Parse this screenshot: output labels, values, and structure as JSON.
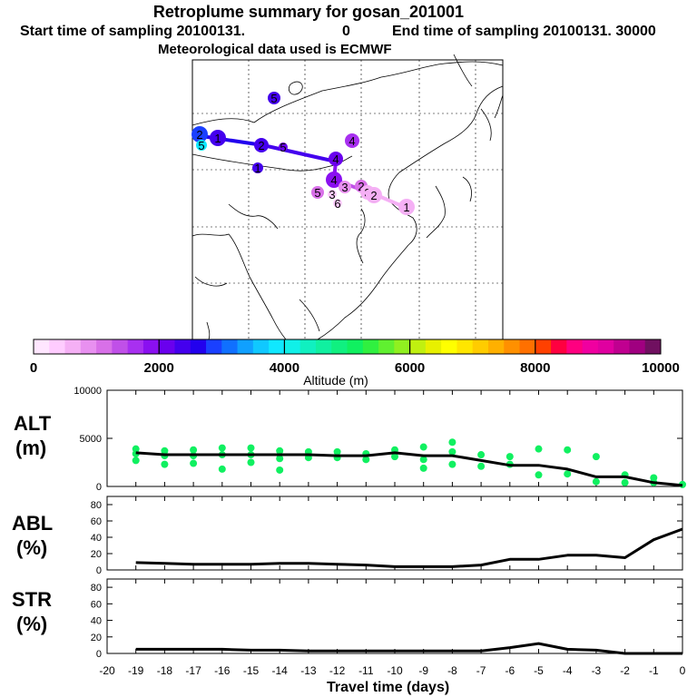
{
  "title": "Retroplume summary for gosan_201001",
  "subtitle": {
    "start_label": "Start time of sampling 20100131.",
    "start_value": "0",
    "end_label": "End time of sampling 20100131. 30000"
  },
  "met_note": "Meteorological data used is ECMWF",
  "colorbar": {
    "label": "Altitude (m)",
    "tick_labels": [
      "0",
      "2000",
      "4000",
      "6000",
      "8000",
      "10000"
    ],
    "colors": [
      "#ffe6ff",
      "#ffccff",
      "#f5b0f5",
      "#e890f0",
      "#d870e8",
      "#c050e8",
      "#a830f0",
      "#8a10f0",
      "#6a00ee",
      "#4400ee",
      "#2200ee",
      "#1a40ff",
      "#1070ff",
      "#10a0ff",
      "#10c8ff",
      "#10e8ff",
      "#10f0e8",
      "#10f0c0",
      "#10f0a0",
      "#10f080",
      "#10f060",
      "#30f040",
      "#60f030",
      "#90f020",
      "#c0f010",
      "#e8f000",
      "#ffff00",
      "#ffe600",
      "#ffcc00",
      "#ffb000",
      "#ff9000",
      "#ff7000",
      "#ff4000",
      "#ff0040",
      "#ff0080",
      "#f000a0",
      "#e000a0",
      "#c00090",
      "#a00080",
      "#701060"
    ]
  },
  "map_markers": [
    {
      "n": "2",
      "color": "#1a40ff"
    },
    {
      "n": "5",
      "color": "#10e8ff"
    },
    {
      "n": "1",
      "color": "#4400ee"
    },
    {
      "n": "5",
      "color": "#4400ee"
    },
    {
      "n": "2",
      "color": "#4400ee"
    },
    {
      "n": "5",
      "color": "#6a00ee"
    },
    {
      "n": "4",
      "color": "#a830f0"
    },
    {
      "n": "4",
      "color": "#6a00ee"
    },
    {
      "n": "1",
      "color": "#4400ee"
    },
    {
      "n": "4",
      "color": "#8a10f0"
    },
    {
      "n": "5",
      "color": "#d870e8"
    },
    {
      "n": "3",
      "color": "#e890f0"
    },
    {
      "n": "2",
      "color": "#d870e8"
    },
    {
      "n": "3",
      "color": "#f5b0f5"
    },
    {
      "n": "2",
      "color": "#f5b0f5"
    },
    {
      "n": "3",
      "color": "#ffccff"
    },
    {
      "n": "6",
      "color": "#ffccff"
    },
    {
      "n": "1",
      "color": "#f5b0f5"
    }
  ],
  "panels": [
    {
      "label_top": "ALT",
      "label_bottom": "(m)"
    },
    {
      "label_top": "ABL",
      "label_bottom": "(%)"
    },
    {
      "label_top": "STR",
      "label_bottom": "(%)"
    }
  ],
  "x_axis_label": "Travel time (days)",
  "chart_data": [
    {
      "type": "line",
      "name": "ALT",
      "ylabel": "ALT (m)",
      "xlabel": "Travel time (days)",
      "xlim": [
        -20,
        0
      ],
      "ylim": [
        0,
        10000
      ],
      "y_ticks": [
        0,
        5000,
        10000
      ],
      "x_ticks": [
        -20,
        -19,
        -18,
        -17,
        -16,
        -15,
        -14,
        -13,
        -12,
        -11,
        -10,
        -9,
        -8,
        -7,
        -6,
        -5,
        -4,
        -3,
        -2,
        -1,
        0
      ],
      "x": [
        -19,
        -18,
        -17,
        -16,
        -15,
        -14,
        -13,
        -12,
        -11,
        -10,
        -9,
        -8,
        -7,
        -6,
        -5,
        -4,
        -3,
        -2,
        -1,
        0
      ],
      "values": [
        3500,
        3300,
        3300,
        3300,
        3300,
        3300,
        3300,
        3200,
        3200,
        3500,
        3200,
        3200,
        2700,
        2200,
        2200,
        1800,
        1000,
        1000,
        400,
        100
      ],
      "scatter": {
        "color": "#10f060",
        "x": [
          -19,
          -19,
          -19,
          -18,
          -18,
          -18,
          -17,
          -17,
          -17,
          -16,
          -16,
          -16,
          -15,
          -15,
          -15,
          -14,
          -14,
          -14,
          -13,
          -13,
          -12,
          -12,
          -11,
          -11,
          -10,
          -10,
          -9,
          -9,
          -9,
          -8,
          -8,
          -8,
          -7,
          -7,
          -6,
          -6,
          -5,
          -5,
          -4,
          -4,
          -3,
          -3,
          -2,
          -2,
          -1,
          -1,
          0
        ],
        "y": [
          3900,
          3400,
          2700,
          3700,
          3200,
          2300,
          3800,
          3200,
          2400,
          4000,
          3300,
          1800,
          4000,
          3300,
          2500,
          3700,
          2900,
          1700,
          3600,
          3000,
          3600,
          3000,
          3400,
          2800,
          3800,
          3100,
          4100,
          2800,
          1900,
          4600,
          3600,
          2300,
          3300,
          2100,
          3100,
          2300,
          3900,
          1200,
          3800,
          1300,
          3100,
          500,
          1200,
          400,
          900,
          400,
          200
        ]
      }
    },
    {
      "type": "line",
      "name": "ABL",
      "ylabel": "ABL (%)",
      "xlim": [
        -20,
        0
      ],
      "ylim": [
        0,
        90
      ],
      "y_ticks": [
        0,
        20,
        40,
        60,
        80
      ],
      "x": [
        -19,
        -18,
        -17,
        -16,
        -15,
        -14,
        -13,
        -12,
        -11,
        -10,
        -9,
        -8,
        -7,
        -6,
        -5,
        -4,
        -3,
        -2,
        -1,
        0
      ],
      "values": [
        9,
        8,
        7,
        7,
        7,
        8,
        8,
        7,
        6,
        4,
        4,
        4,
        6,
        13,
        13,
        18,
        18,
        15,
        37,
        50
      ]
    },
    {
      "type": "line",
      "name": "STR",
      "ylabel": "STR (%)",
      "xlim": [
        -20,
        0
      ],
      "ylim": [
        0,
        90
      ],
      "y_ticks": [
        0,
        20,
        40,
        60,
        80
      ],
      "x": [
        -19,
        -18,
        -17,
        -16,
        -15,
        -14,
        -13,
        -12,
        -11,
        -10,
        -9,
        -8,
        -7,
        -6,
        -5,
        -4,
        -3,
        -2,
        -1,
        0
      ],
      "values": [
        5,
        5,
        5,
        5,
        4,
        4,
        3,
        3,
        3,
        3,
        3,
        3,
        3,
        7,
        12,
        5,
        4,
        0,
        0,
        0
      ]
    }
  ]
}
